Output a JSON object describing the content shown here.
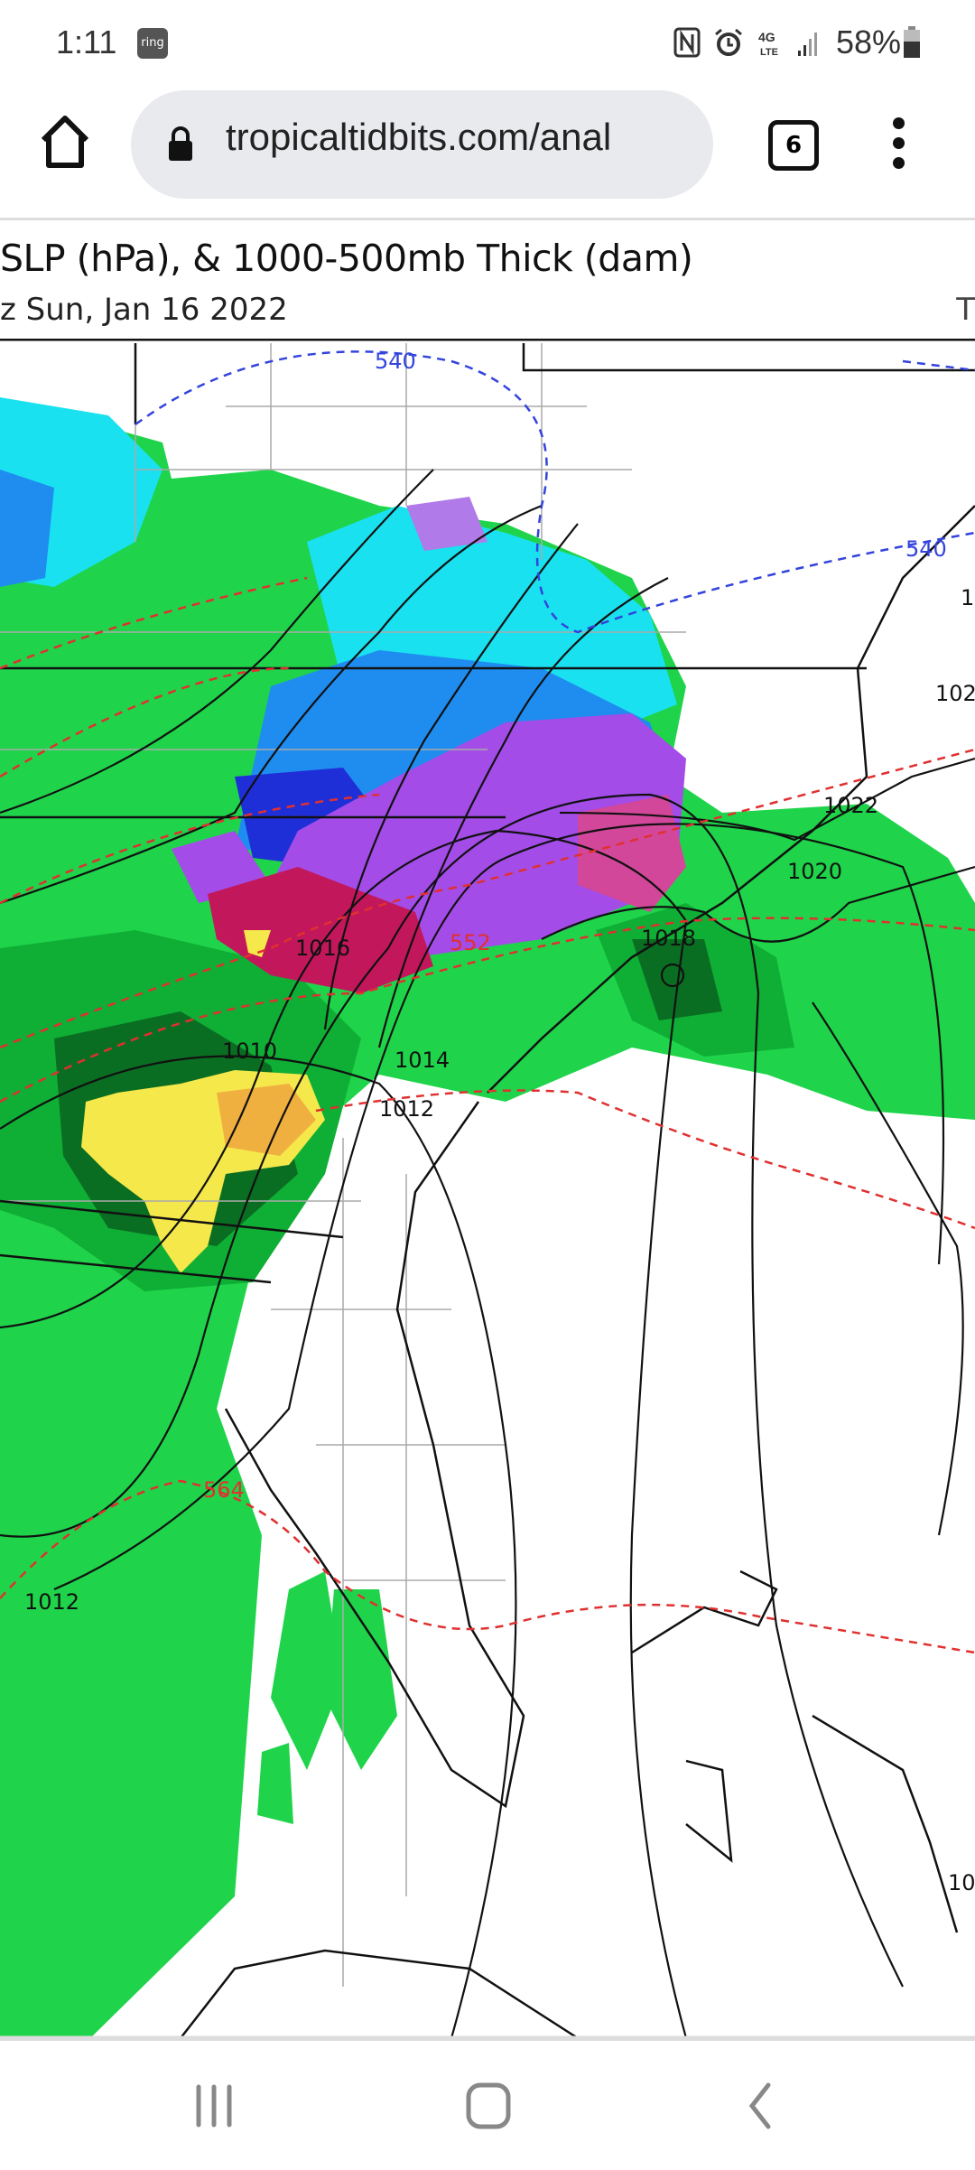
{
  "status_bar": {
    "time": "1:11",
    "notification_app": "ring",
    "battery": "58%",
    "icons": [
      "nfc-icon",
      "alarm-icon",
      "4g-lte-icon",
      "signal-icon",
      "battery-icon"
    ]
  },
  "browser": {
    "url": "tropicaltidbits.com/anal",
    "tab_count": "6"
  },
  "map": {
    "title": "SLP (hPa), & 1000-500mb Thick (dam)",
    "date": "z Sun, Jan 16 2022",
    "right_cut": "T",
    "thickness_labels": {
      "blue_540_top": "540",
      "blue_540_right": "540",
      "red_552": "552",
      "red_564": "564"
    },
    "isobar_labels": {
      "l1010": "1010",
      "l1012a": "1012",
      "l1012b": "1012",
      "l1014": "1014",
      "l1016": "1016",
      "l1018": "1018",
      "l1020": "1020",
      "l1022": "1022",
      "l102": "102",
      "l1_right": "1",
      "l10_right": "10"
    },
    "colors": {
      "rain_light": "#1fd44a",
      "rain_mid": "#0fae35",
      "rain_dark": "#0a6e22",
      "snow_light": "#19e1f0",
      "snow_mid": "#1f8cf0",
      "snow_dark": "#1f2fd8",
      "mix": "#a34ce8",
      "pink": "#d2479a",
      "ice": "#c2185b",
      "yellow": "#f5e84a",
      "orange": "#f0b040"
    }
  },
  "nav_bar": {
    "icons": [
      "recent-apps-icon",
      "home-icon",
      "back-icon"
    ]
  }
}
